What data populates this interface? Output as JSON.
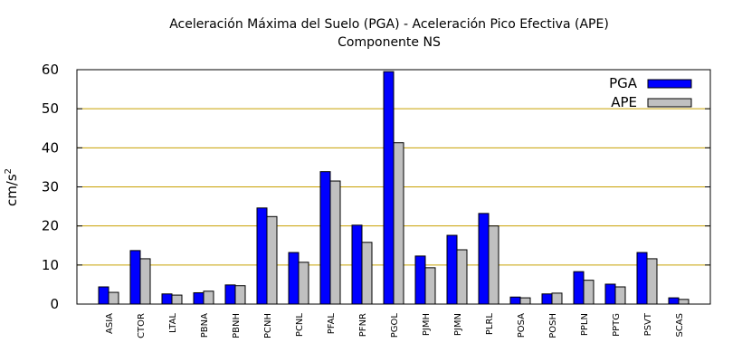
{
  "chart_data": {
    "type": "bar",
    "title": "Aceleración Máxima del Suelo (PGA) -  Aceleración Pico Efectiva (APE)",
    "subtitle": "Componente NS",
    "xlabel": "",
    "ylabel": "cm/s",
    "ylabel_sup": "2",
    "ylim": [
      0,
      60
    ],
    "yticks": [
      0,
      10,
      20,
      30,
      40,
      50,
      60
    ],
    "grid": "horizontal",
    "legend_position": "top-right",
    "categories": [
      "ASIA",
      "CTOR",
      "LTAL",
      "PBNA",
      "PBNH",
      "PCNH",
      "PCNL",
      "PFAL",
      "PFNR",
      "PGOL",
      "PJMH",
      "PJMN",
      "PLRL",
      "POSA",
      "POSH",
      "PPLN",
      "PPTG",
      "PSVT",
      "SCAS"
    ],
    "series": [
      {
        "name": "PGA",
        "color": "#0000ff",
        "values": [
          4.4,
          13.7,
          2.6,
          2.9,
          4.9,
          24.6,
          13.2,
          33.9,
          20.2,
          59.5,
          12.3,
          17.6,
          23.2,
          1.8,
          2.6,
          8.3,
          5.1,
          13.2,
          1.6
        ]
      },
      {
        "name": "APE",
        "color": "#c0c0c0",
        "values": [
          3.0,
          11.6,
          2.3,
          3.3,
          4.7,
          22.4,
          10.7,
          31.5,
          15.8,
          41.3,
          9.3,
          13.9,
          20.0,
          1.6,
          2.8,
          6.1,
          4.4,
          11.6,
          1.2
        ]
      }
    ]
  }
}
